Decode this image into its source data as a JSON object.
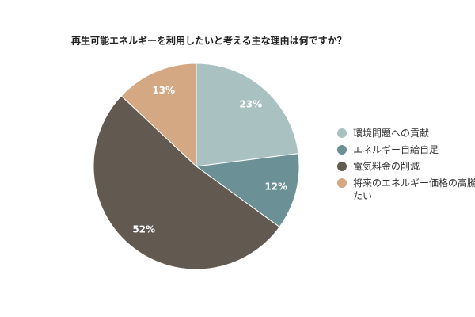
{
  "chart_data": {
    "type": "pie",
    "title": "再生可能エネルギーを利用したいと考える主な理由は何ですか？",
    "categories": [
      "環境問題への貢献",
      "エネルギー自給自足",
      "電気料金の削減",
      "将来のエネルギー価格の高騰に備えたい"
    ],
    "values": [
      23,
      12,
      52,
      13
    ],
    "value_labels": [
      "23%",
      "12%",
      "52%",
      "13%"
    ],
    "colors": [
      "#a9c1c1",
      "#6b9096",
      "#625950",
      "#d3a883"
    ],
    "legend": "right"
  }
}
